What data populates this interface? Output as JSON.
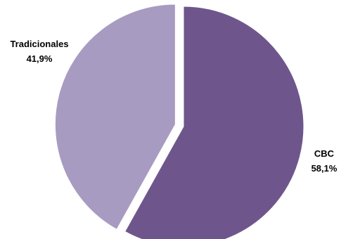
{
  "chart_data": {
    "type": "pie",
    "title": "",
    "slices": [
      {
        "label": "CBC",
        "value": 58.1,
        "value_text": "58,1%",
        "color": "#6e568d",
        "exploded": false
      },
      {
        "label": "Tradicionales",
        "value": 41.9,
        "value_text": "41,9%",
        "color": "#a89bc2",
        "exploded": true
      }
    ],
    "start_angle": "12 o'clock",
    "direction": "clockwise",
    "legend": "none",
    "data_labels": "outside"
  }
}
